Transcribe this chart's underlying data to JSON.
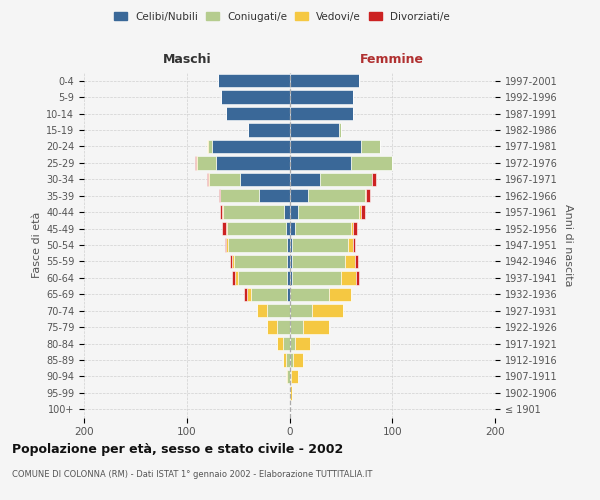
{
  "age_groups": [
    "100+",
    "95-99",
    "90-94",
    "85-89",
    "80-84",
    "75-79",
    "70-74",
    "65-69",
    "60-64",
    "55-59",
    "50-54",
    "45-49",
    "40-44",
    "35-39",
    "30-34",
    "25-29",
    "20-24",
    "15-19",
    "10-14",
    "5-9",
    "0-4"
  ],
  "birth_years": [
    "≤ 1901",
    "1902-1906",
    "1907-1911",
    "1912-1916",
    "1917-1921",
    "1922-1926",
    "1927-1931",
    "1932-1936",
    "1937-1941",
    "1942-1946",
    "1947-1951",
    "1952-1956",
    "1957-1961",
    "1962-1966",
    "1967-1971",
    "1972-1976",
    "1977-1981",
    "1982-1986",
    "1987-1991",
    "1992-1996",
    "1997-2001"
  ],
  "maschi": {
    "celibi": [
      0,
      0,
      0,
      0,
      0,
      0,
      0,
      2,
      2,
      2,
      2,
      3,
      5,
      30,
      48,
      72,
      75,
      40,
      62,
      67,
      70
    ],
    "coniugati": [
      0,
      0,
      2,
      3,
      6,
      12,
      22,
      35,
      48,
      52,
      58,
      58,
      60,
      38,
      30,
      18,
      4,
      0,
      0,
      0,
      0
    ],
    "vedovi": [
      0,
      0,
      1,
      3,
      6,
      10,
      10,
      4,
      3,
      2,
      2,
      1,
      1,
      0,
      1,
      1,
      1,
      0,
      0,
      0,
      0
    ],
    "divorziati": [
      0,
      0,
      0,
      0,
      0,
      0,
      0,
      3,
      3,
      2,
      1,
      4,
      2,
      1,
      1,
      1,
      0,
      0,
      0,
      0,
      0
    ]
  },
  "femmine": {
    "nubili": [
      0,
      0,
      0,
      0,
      0,
      0,
      0,
      0,
      2,
      2,
      2,
      5,
      8,
      18,
      30,
      60,
      70,
      48,
      62,
      62,
      68
    ],
    "coniugate": [
      0,
      0,
      1,
      3,
      5,
      13,
      22,
      38,
      48,
      52,
      55,
      55,
      60,
      55,
      50,
      40,
      18,
      2,
      0,
      0,
      0
    ],
    "vedove": [
      0,
      2,
      7,
      10,
      15,
      25,
      30,
      22,
      15,
      10,
      5,
      2,
      2,
      1,
      0,
      0,
      0,
      0,
      0,
      0,
      0
    ],
    "divorziate": [
      0,
      0,
      0,
      0,
      0,
      0,
      0,
      0,
      3,
      3,
      2,
      4,
      3,
      4,
      4,
      0,
      0,
      0,
      0,
      0,
      0
    ]
  },
  "colors": {
    "celibi": "#3a6898",
    "coniugati": "#b5cc8e",
    "vedovi": "#f5c842",
    "divorziati": "#cc2222"
  },
  "title": "Popolazione per età, sesso e stato civile - 2002",
  "subtitle": "COMUNE DI COLONNA (RM) - Dati ISTAT 1° gennaio 2002 - Elaborazione TUTTITALIA.IT",
  "ylabel_left": "Fasce di età",
  "ylabel_right": "Anni di nascita",
  "maschi_label": "Maschi",
  "femmine_label": "Femmine",
  "legend": [
    "Celibi/Nubili",
    "Coniugati/e",
    "Vedovi/e",
    "Divorziati/e"
  ],
  "xlim": 200,
  "bg_color": "#f5f5f5",
  "grid_color": "#cccccc"
}
